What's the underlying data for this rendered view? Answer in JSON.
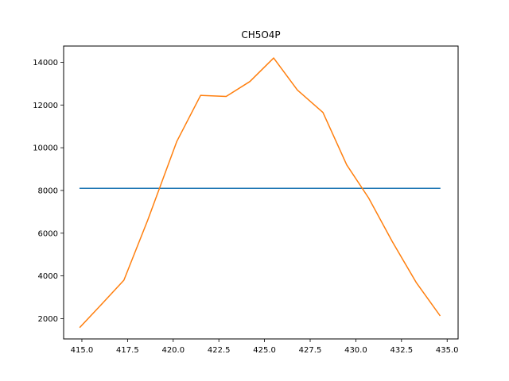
{
  "chart_data": {
    "type": "line",
    "title": "CH5O4P",
    "xlabel": "",
    "ylabel": "",
    "xlim": [
      414.0,
      435.6
    ],
    "ylim": [
      1050,
      14760
    ],
    "grid": false,
    "legend": "none",
    "x_ticks": [
      415.0,
      417.5,
      420.0,
      422.5,
      425.0,
      427.5,
      430.0,
      432.5,
      435.0
    ],
    "x_tick_labels": [
      "415.0",
      "417.5",
      "420.0",
      "422.5",
      "425.0",
      "427.5",
      "430.0",
      "432.5",
      "435.0"
    ],
    "y_ticks": [
      2000,
      4000,
      6000,
      8000,
      10000,
      12000,
      14000
    ],
    "y_tick_labels": [
      "2000",
      "4000",
      "6000",
      "8000",
      "10000",
      "12000",
      "14000"
    ],
    "series": [
      {
        "color": "#1f77b4",
        "x": [
          414.9,
          434.6
        ],
        "y": [
          8100,
          8100
        ]
      },
      {
        "color": "#ff7f0e",
        "x": [
          414.9,
          416.0,
          417.3,
          418.6,
          420.2,
          421.5,
          422.9,
          424.2,
          425.5,
          426.8,
          428.2,
          429.5,
          430.7,
          432.0,
          433.3,
          434.6
        ],
        "y": [
          1600,
          2600,
          3800,
          6600,
          10300,
          12450,
          12400,
          13100,
          14200,
          12700,
          11650,
          9200,
          7650,
          5600,
          3700,
          2150
        ]
      }
    ]
  }
}
